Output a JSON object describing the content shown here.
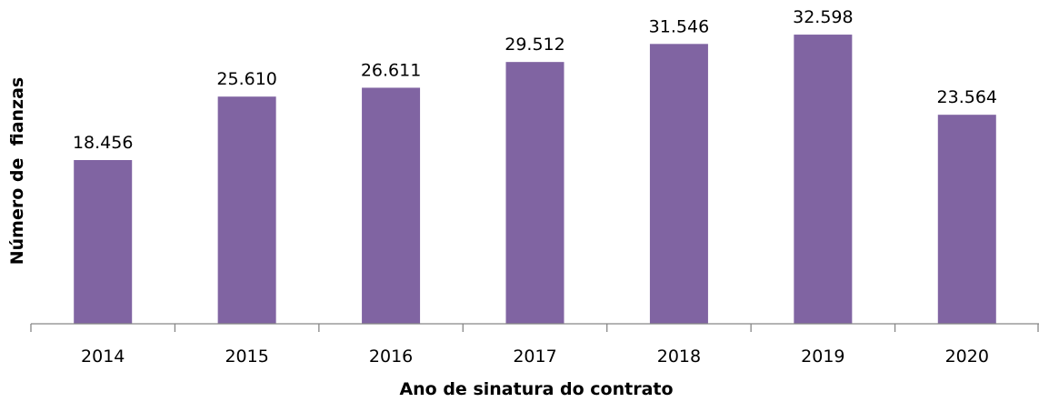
{
  "chart_data": {
    "type": "bar",
    "categories": [
      "2014",
      "2015",
      "2016",
      "2017",
      "2018",
      "2019",
      "2020"
    ],
    "values": [
      18456,
      25610,
      26611,
      29512,
      31546,
      32598,
      23564
    ],
    "data_labels": [
      "18.456",
      "25.610",
      "26.611",
      "29.512",
      "31.546",
      "32.598",
      "23.564"
    ],
    "title": "",
    "xlabel": "Ano de sinatura do contrato",
    "ylabel": "Número de  fianzas",
    "ylim": [
      0,
      36500
    ],
    "grid": false,
    "legend": "none",
    "bar_color": "#8064A2",
    "axis_color": "#868686"
  }
}
